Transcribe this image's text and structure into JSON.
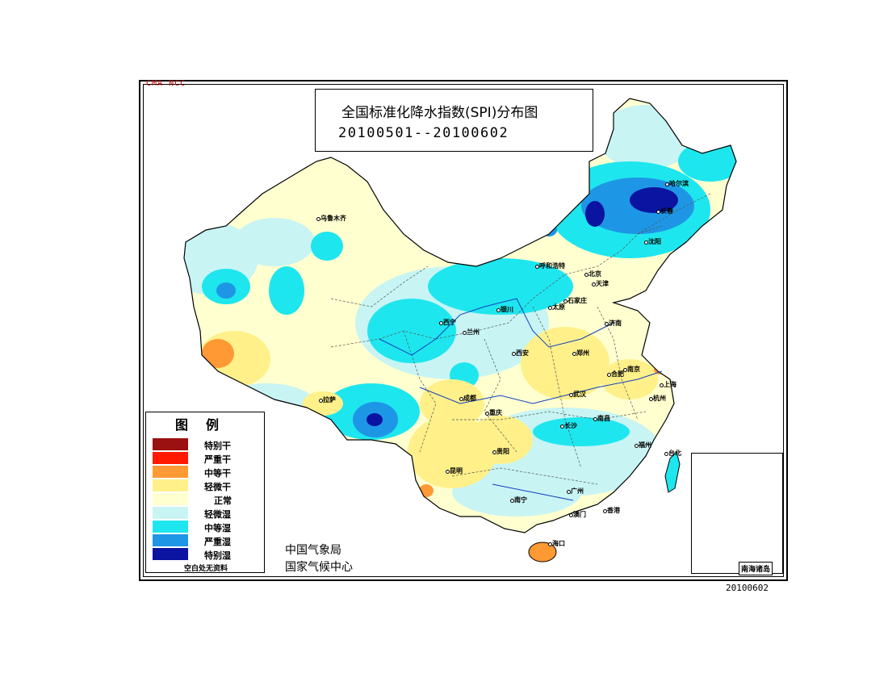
{
  "credit": "CMA NCC",
  "title": {
    "line1": "全国标准化降水指数(SPI)分布图",
    "line2": "20100501--20100602"
  },
  "legend": {
    "title": "图例",
    "items": [
      {
        "label": "特别干",
        "color": "#9b1010"
      },
      {
        "label": "严重干",
        "color": "#ff1a00"
      },
      {
        "label": "中等干",
        "color": "#ff9933"
      },
      {
        "label": "轻微干",
        "color": "#fff08a"
      },
      {
        "label": "正常",
        "color": "#ffffd0"
      },
      {
        "label": "轻微湿",
        "color": "#c8f4f4"
      },
      {
        "label": "中等湿",
        "color": "#1ee6ee"
      },
      {
        "label": "严重湿",
        "color": "#1e96e6"
      },
      {
        "label": "特别湿",
        "color": "#0a14a0"
      }
    ],
    "note": "空白处无资料"
  },
  "agency": {
    "line1": "中国气象局",
    "line2": "国家气候中心"
  },
  "date_stamp": "20100602",
  "inset_label": "南海诸岛",
  "cities": [
    "乌鲁木齐",
    "拉萨",
    "西宁",
    "兰州",
    "银川",
    "呼和浩特",
    "北京",
    "天津",
    "石家庄",
    "太原",
    "济南",
    "郑州",
    "西安",
    "成都",
    "重庆",
    "贵阳",
    "昆明",
    "南宁",
    "广州",
    "香港",
    "澳门",
    "海口",
    "长沙",
    "武汉",
    "南昌",
    "合肥",
    "南京",
    "上海",
    "杭州",
    "福州",
    "台北",
    "沈阳",
    "长春",
    "哈尔滨"
  ]
}
